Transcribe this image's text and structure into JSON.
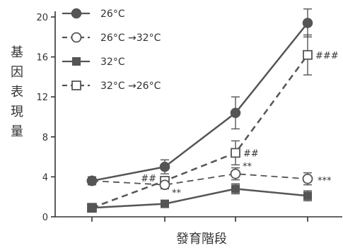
{
  "chart_data": {
    "type": "line",
    "title": "",
    "xlabel": "發育階段",
    "ylabel": "基因表現量",
    "categories": [
      "",
      "",
      "",
      ""
    ],
    "ylim": [
      0,
      20
    ],
    "yticks": [
      0,
      4,
      8,
      12,
      16,
      20
    ],
    "grid": false,
    "legend_position": "top-left",
    "series": [
      {
        "name": "26°C",
        "values": [
          3.6,
          5.0,
          10.4,
          19.4
        ],
        "errors": [
          0.4,
          0.7,
          1.6,
          1.4
        ],
        "marker": "filled-circle",
        "line": "solid",
        "color": "#555555"
      },
      {
        "name": "26°C →32°C",
        "values": [
          3.6,
          3.2,
          4.3,
          3.8
        ],
        "errors": [
          0.4,
          0.4,
          0.6,
          0.6
        ],
        "marker": "open-circle",
        "line": "dashed",
        "color": "#555555"
      },
      {
        "name": "32°C",
        "values": [
          0.9,
          1.3,
          2.8,
          2.1
        ],
        "errors": [
          0.15,
          0.2,
          0.5,
          0.5
        ],
        "marker": "filled-square",
        "line": "solid",
        "color": "#555555"
      },
      {
        "name": "32°C →26°C",
        "values": [
          0.9,
          3.6,
          6.4,
          16.2
        ],
        "errors": [
          0.15,
          0.4,
          1.2,
          2.0
        ],
        "marker": "open-square",
        "line": "dashed",
        "color": "#555555"
      }
    ],
    "annotations": [
      {
        "text": "##",
        "category_index": 1,
        "series_index": 3
      },
      {
        "text": "**",
        "category_index": 1,
        "series_index": 1
      },
      {
        "text": "##",
        "category_index": 2,
        "series_index": 3
      },
      {
        "text": "**",
        "category_index": 2,
        "series_index": 1
      },
      {
        "text": "###",
        "category_index": 3,
        "series_index": 3
      },
      {
        "text": "***",
        "category_index": 3,
        "series_index": 1
      }
    ]
  }
}
